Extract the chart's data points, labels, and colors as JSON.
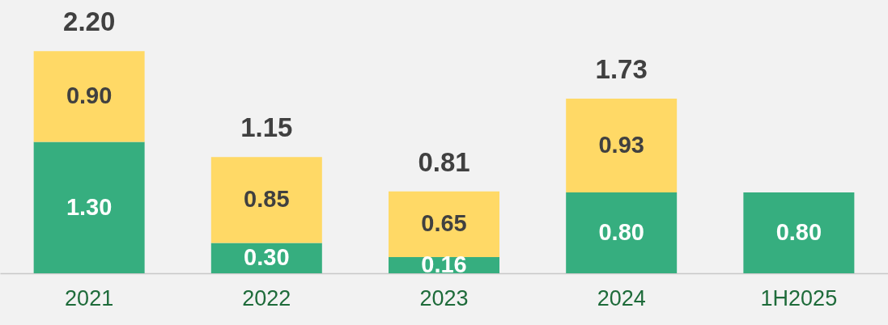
{
  "chart_data": {
    "type": "bar",
    "stacked": true,
    "categories": [
      "2021",
      "2022",
      "2023",
      "2024",
      "1H2025"
    ],
    "series": [
      {
        "color": "#36ae7f",
        "values": [
          1.3,
          0.3,
          0.16,
          0.8,
          0.8
        ],
        "value_labels": [
          "1.30",
          "0.30",
          "0.16",
          "0.80",
          "0.80"
        ]
      },
      {
        "color": "#ffd966",
        "values": [
          0.9,
          0.85,
          0.65,
          0.93,
          null
        ],
        "value_labels": [
          "0.90",
          "0.85",
          "0.65",
          "0.93",
          null
        ]
      }
    ],
    "totals": [
      "2.20",
      "1.15",
      "0.81",
      "1.73",
      null
    ]
  }
}
